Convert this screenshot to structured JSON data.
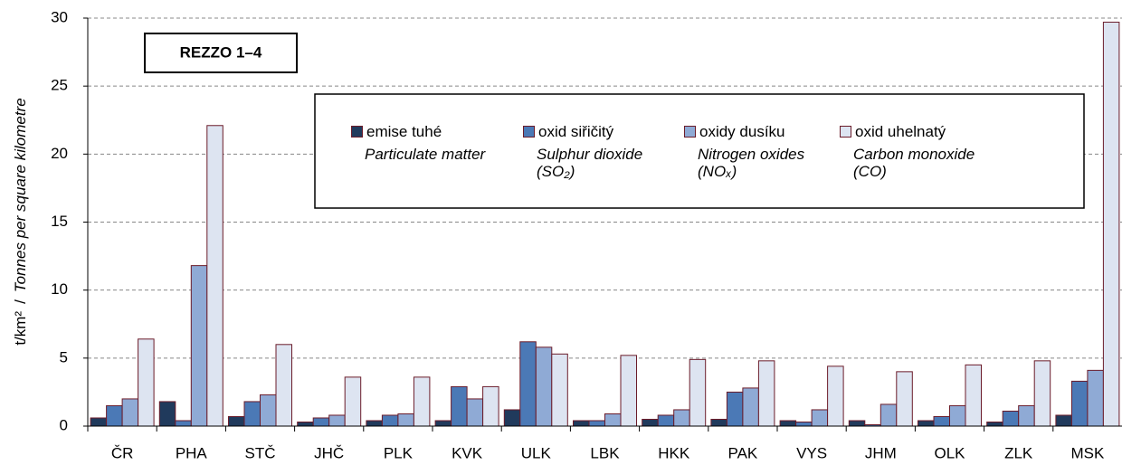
{
  "chart_data": {
    "type": "bar",
    "annotation": "REZZO 1–4",
    "ylabel": [
      "t/km²",
      "/",
      "Tonnes per square kilometre"
    ],
    "categories": [
      "ČR",
      "PHA",
      "STČ",
      "JHČ",
      "PLK",
      "KVK",
      "ULK",
      "LBK",
      "HKK",
      "PAK",
      "VYS",
      "JHM",
      "OLK",
      "ZLK",
      "MSK"
    ],
    "series": [
      {
        "name": "emise tuhé",
        "name_en": "Particulate matter",
        "color": "#203a5c",
        "values": [
          0.6,
          1.8,
          0.7,
          0.3,
          0.4,
          0.4,
          1.2,
          0.4,
          0.5,
          0.5,
          0.4,
          0.4,
          0.4,
          0.3,
          0.8
        ]
      },
      {
        "name": "oxid siřičitý",
        "name_en": "Sulphur dioxide (SO₂)",
        "color": "#4b79b6",
        "values": [
          1.5,
          0.4,
          1.8,
          0.6,
          0.8,
          2.9,
          6.2,
          0.4,
          0.8,
          2.5,
          0.3,
          0.1,
          0.7,
          1.1,
          3.3
        ]
      },
      {
        "name": "oxidy dusíku",
        "name_en": "Nitrogen oxides (NOₓ)",
        "color": "#8faad5",
        "values": [
          2.0,
          11.8,
          2.3,
          0.8,
          0.9,
          2.0,
          5.8,
          0.9,
          1.2,
          2.8,
          1.2,
          1.6,
          1.5,
          1.5,
          4.1
        ]
      },
      {
        "name": "oxid uhelnatý",
        "name_en": "Carbon monoxide (CO)",
        "color": "#dde4f1",
        "values": [
          6.4,
          22.1,
          6.0,
          3.6,
          3.6,
          2.9,
          5.3,
          5.2,
          4.9,
          4.8,
          4.4,
          4.0,
          4.5,
          4.8,
          29.7
        ]
      }
    ],
    "ylim": [
      0,
      30
    ],
    "yticks": [
      0,
      5,
      10,
      15,
      20,
      25,
      30
    ],
    "grid": true
  }
}
